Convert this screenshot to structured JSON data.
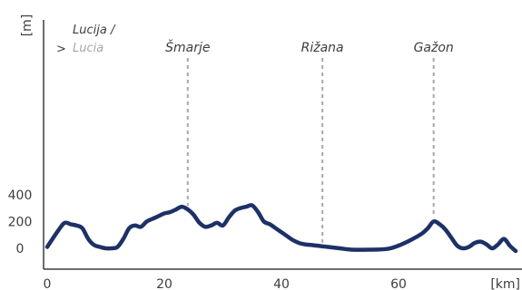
{
  "chart_data": {
    "type": "line",
    "title": "",
    "xlabel": "[km]",
    "ylabel": "[m]",
    "xlim": [
      0,
      80
    ],
    "ylim": [
      -30,
      2000
    ],
    "x_ticks": [
      "0",
      "20",
      "40",
      "60"
    ],
    "y_ticks": [
      "0",
      "200",
      "400"
    ],
    "start_label": {
      "marker": ">",
      "line1": "Lucija /",
      "line2": "Lucia"
    },
    "markers": [
      {
        "label": "Šmarje",
        "x": 24
      },
      {
        "label": "Rižana",
        "x": 47
      },
      {
        "label": "Gažon",
        "x": 66
      }
    ],
    "series": [
      {
        "x": [
          0,
          2,
          3,
          4,
          5,
          6,
          7,
          8,
          9,
          10,
          11,
          12,
          13,
          14,
          15,
          16,
          17,
          18,
          19,
          20,
          21,
          22,
          23,
          24,
          25,
          26,
          27,
          28,
          29,
          30,
          31,
          32,
          33,
          34,
          35,
          36,
          37,
          38,
          39,
          40,
          41,
          42,
          43,
          44,
          45,
          46,
          47,
          48,
          50,
          52,
          55,
          58,
          60,
          62,
          64,
          65,
          66,
          67,
          68,
          69,
          70,
          71,
          72,
          73,
          74,
          75,
          76,
          77,
          78,
          79,
          80
        ],
        "values": [
          10,
          140,
          190,
          180,
          170,
          150,
          70,
          25,
          10,
          0,
          0,
          10,
          70,
          150,
          170,
          160,
          200,
          220,
          240,
          260,
          270,
          290,
          310,
          290,
          250,
          190,
          160,
          170,
          190,
          170,
          230,
          280,
          300,
          310,
          320,
          270,
          200,
          180,
          150,
          120,
          90,
          60,
          40,
          30,
          25,
          20,
          15,
          10,
          0,
          -10,
          -10,
          -5,
          20,
          60,
          110,
          150,
          200,
          180,
          140,
          80,
          20,
          0,
          10,
          40,
          50,
          30,
          0,
          30,
          70,
          20,
          -20
        ]
      }
    ]
  }
}
